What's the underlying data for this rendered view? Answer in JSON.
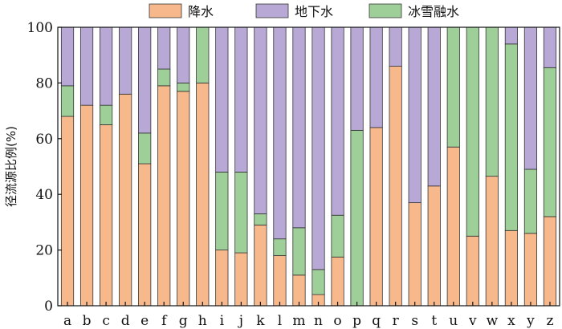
{
  "chart_data": {
    "type": "bar",
    "stacked": true,
    "ylabel": "径流源比例(%)",
    "xlabel": "",
    "ylim": [
      0,
      100
    ],
    "yticks": [
      0,
      20,
      40,
      60,
      80,
      100
    ],
    "categories": [
      "a",
      "b",
      "c",
      "d",
      "e",
      "f",
      "g",
      "h",
      "i",
      "j",
      "k",
      "l",
      "m",
      "n",
      "o",
      "p",
      "q",
      "r",
      "s",
      "t",
      "u",
      "v",
      "w",
      "x",
      "y",
      "z"
    ],
    "series": [
      {
        "name": "降水",
        "color": "#F7B88C",
        "values": [
          68,
          72,
          65,
          76,
          51,
          79,
          77,
          80,
          20,
          19,
          29,
          18,
          11,
          4,
          17.5,
          0,
          64,
          86,
          37,
          43,
          57,
          25,
          46.5,
          27,
          26,
          32
        ]
      },
      {
        "name": "冰雪融水",
        "color": "#9FCF99",
        "values": [
          11,
          0,
          7,
          0,
          11,
          6,
          3,
          20,
          28,
          29,
          4,
          6,
          17,
          9,
          15,
          63,
          0,
          0,
          0,
          0,
          43,
          75,
          53.5,
          67,
          23,
          53.5
        ]
      },
      {
        "name": "地下水",
        "color": "#B8A8D6",
        "values": [
          21,
          28,
          28,
          24,
          38,
          15,
          20,
          0,
          52,
          52,
          67,
          76,
          72,
          87,
          67.5,
          37,
          36,
          14,
          63,
          57,
          0,
          0,
          0,
          6,
          51,
          14.5
        ]
      }
    ],
    "legend": {
      "position": "top",
      "items": [
        {
          "label": "降水",
          "color": "#F7B88C"
        },
        {
          "label": "地下水",
          "color": "#B8A8D6"
        },
        {
          "label": "冰雪融水",
          "color": "#9FCF99"
        }
      ]
    },
    "grid": false
  }
}
